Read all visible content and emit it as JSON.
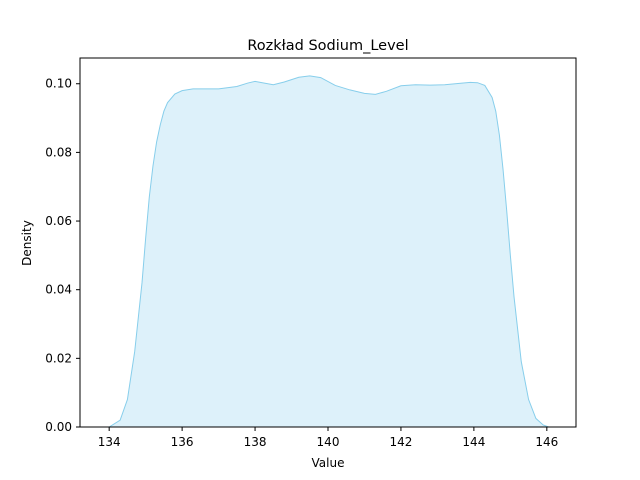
{
  "chart_data": {
    "type": "area",
    "title": "Rozkład Sodium_Level",
    "xlabel": "Value",
    "ylabel": "Density",
    "xlim": [
      133.2,
      146.8
    ],
    "ylim": [
      0.0,
      0.1075
    ],
    "xticks": [
      134,
      136,
      138,
      140,
      142,
      144,
      146
    ],
    "yticks": [
      0.0,
      0.02,
      0.04,
      0.06,
      0.08,
      0.1
    ],
    "ytick_labels": [
      "0.00",
      "0.02",
      "0.04",
      "0.06",
      "0.08",
      "0.10"
    ],
    "grid": false,
    "series": [
      {
        "fill_color": "#ddf1fa",
        "line_color": "#87ceeb",
        "x": [
          134.0,
          134.3,
          134.5,
          134.7,
          134.9,
          135.0,
          135.1,
          135.2,
          135.3,
          135.4,
          135.5,
          135.6,
          135.8,
          136.0,
          136.3,
          136.6,
          137.0,
          137.5,
          137.8,
          138.0,
          138.2,
          138.5,
          138.8,
          139.2,
          139.5,
          139.8,
          140.2,
          140.6,
          141.0,
          141.3,
          141.6,
          142.0,
          142.4,
          142.8,
          143.2,
          143.6,
          143.9,
          144.1,
          144.3,
          144.5,
          144.6,
          144.7,
          144.8,
          144.9,
          145.0,
          145.1,
          145.3,
          145.5,
          145.7,
          145.9,
          146.05
        ],
        "y": [
          0.0,
          0.002,
          0.008,
          0.022,
          0.042,
          0.055,
          0.067,
          0.076,
          0.083,
          0.088,
          0.092,
          0.0945,
          0.097,
          0.098,
          0.0985,
          0.0985,
          0.0985,
          0.0992,
          0.1002,
          0.1007,
          0.1003,
          0.0997,
          0.1005,
          0.1019,
          0.1023,
          0.1018,
          0.0995,
          0.0982,
          0.0972,
          0.0969,
          0.0978,
          0.0994,
          0.0997,
          0.0996,
          0.0997,
          0.1001,
          0.1004,
          0.1003,
          0.0995,
          0.096,
          0.092,
          0.085,
          0.075,
          0.063,
          0.05,
          0.038,
          0.019,
          0.008,
          0.0025,
          0.0006,
          0.0
        ]
      }
    ]
  }
}
